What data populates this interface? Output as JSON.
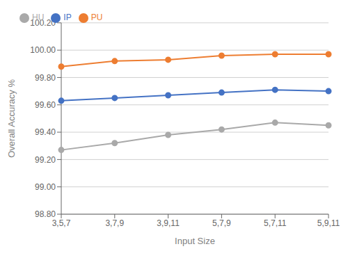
{
  "chart_data": {
    "type": "line",
    "xlabel": "Input Size",
    "ylabel": "Overall Accuracy %",
    "categories": [
      "3,5,7",
      "3,7,9",
      "3,9,11",
      "5,7,9",
      "5,7,11",
      "5,9,11"
    ],
    "series": [
      {
        "name": "IP",
        "color": "#4472C4",
        "marker": "circle",
        "values": [
          99.63,
          99.65,
          99.67,
          99.69,
          99.71,
          99.7
        ]
      },
      {
        "name": "PU",
        "color": "#ED7D31",
        "marker": "circle",
        "values": [
          99.88,
          99.92,
          99.93,
          99.96,
          99.97,
          99.97
        ]
      },
      {
        "name": "HU",
        "color": "#A9A9A9",
        "marker": "circle",
        "values": [
          99.27,
          99.32,
          99.38,
          99.42,
          99.47,
          99.45
        ]
      }
    ],
    "ylim": [
      98.8,
      100.2
    ],
    "yticks": [
      {
        "value": 98.8,
        "label": "98.80"
      },
      {
        "value": 99.0,
        "label": "99.00"
      },
      {
        "value": 99.2,
        "label": "99.20"
      },
      {
        "value": 99.4,
        "label": "99.40"
      },
      {
        "value": 99.6,
        "label": "99.60"
      },
      {
        "value": 99.8,
        "label": "99.80"
      },
      {
        "value": 100.0,
        "label": "100.00"
      },
      {
        "value": 100.2,
        "label": "100.20"
      }
    ],
    "grid": "y",
    "legend": "upper left"
  }
}
